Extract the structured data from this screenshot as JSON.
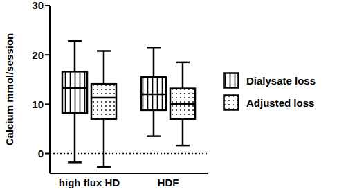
{
  "chart_data": {
    "type": "box",
    "categories": [
      "high flux HD",
      "HDF"
    ],
    "y_label": "Calcium mmol/session",
    "ylim": [
      -4,
      30
    ],
    "yticks": [
      0,
      10,
      20,
      30
    ],
    "reference_line": 0,
    "legend": "right",
    "series": [
      {
        "name": "Dialysate loss",
        "color": "#000000",
        "values": [
          {
            "min": -1.8,
            "q1": 8.2,
            "median": 13.3,
            "q3": 16.6,
            "max": 22.8
          },
          {
            "min": 3.5,
            "q1": 8.8,
            "median": 12.0,
            "q3": 15.5,
            "max": 21.4
          }
        ]
      },
      {
        "name": "Adjusted loss",
        "color": "#000000",
        "values": [
          {
            "min": -2.7,
            "q1": 7.0,
            "median": 11.3,
            "q3": 14.1,
            "max": 20.8
          },
          {
            "min": 1.6,
            "q1": 7.0,
            "median": 10.0,
            "q3": 13.2,
            "max": 18.5
          }
        ]
      }
    ]
  }
}
